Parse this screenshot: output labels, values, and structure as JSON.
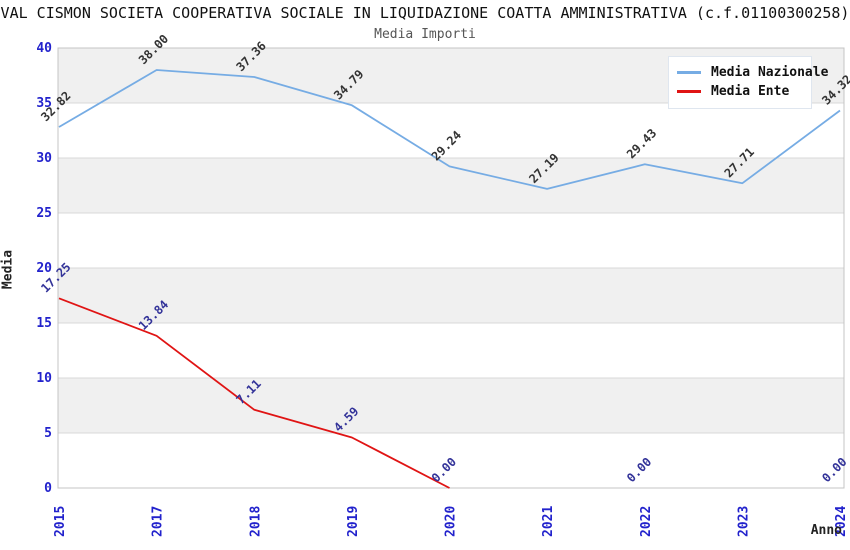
{
  "title": "VAL CISMON SOCIETA COOPERATIVA SOCIALE IN LIQUIDAZIONE COATTA AMMINISTRATIVA (c.f.01100300258)",
  "subtitle": "Media Importi",
  "axes": {
    "y_label": "Media",
    "x_label": "Anno"
  },
  "legend": {
    "items": [
      {
        "label": "Media Nazionale",
        "color": "#76ace4"
      },
      {
        "label": "Media Ente",
        "color": "#e01414"
      }
    ]
  },
  "colors": {
    "band_gray": "#f0f0f0",
    "band_white": "#ffffff",
    "gridline": "#d8d8d8",
    "plot_border": "#c4c4c4",
    "tick_label": "#2222cc",
    "nazionale_line": "#76ace4",
    "ente_line": "#e01414",
    "nazionale_point_label": "#333333",
    "ente_point_label": "#333399"
  },
  "chart_data": {
    "type": "line",
    "title": "Media Importi",
    "xlabel": "Anno",
    "ylabel": "Media",
    "categories": [
      "2015",
      "2017",
      "2018",
      "2019",
      "2020",
      "2021",
      "2022",
      "2023",
      "2024"
    ],
    "series": [
      {
        "name": "Media Nazionale",
        "color": "#76ace4",
        "label_color": "#333333",
        "values": [
          32.82,
          38.0,
          37.36,
          34.79,
          29.24,
          27.19,
          29.43,
          27.71,
          34.32
        ]
      },
      {
        "name": "Media Ente",
        "color": "#e01414",
        "label_color": "#333399",
        "values": [
          17.25,
          13.84,
          7.11,
          4.59,
          0.0,
          null,
          0.0,
          null,
          0.0
        ]
      }
    ],
    "ylim": [
      0,
      40
    ],
    "yticks": [
      0,
      5,
      10,
      15,
      20,
      25,
      30,
      35,
      40
    ],
    "grid": true,
    "banded_background": true,
    "legend_position": "top-right",
    "point_labels": "values shown rotated -45deg with 2 decimals"
  }
}
